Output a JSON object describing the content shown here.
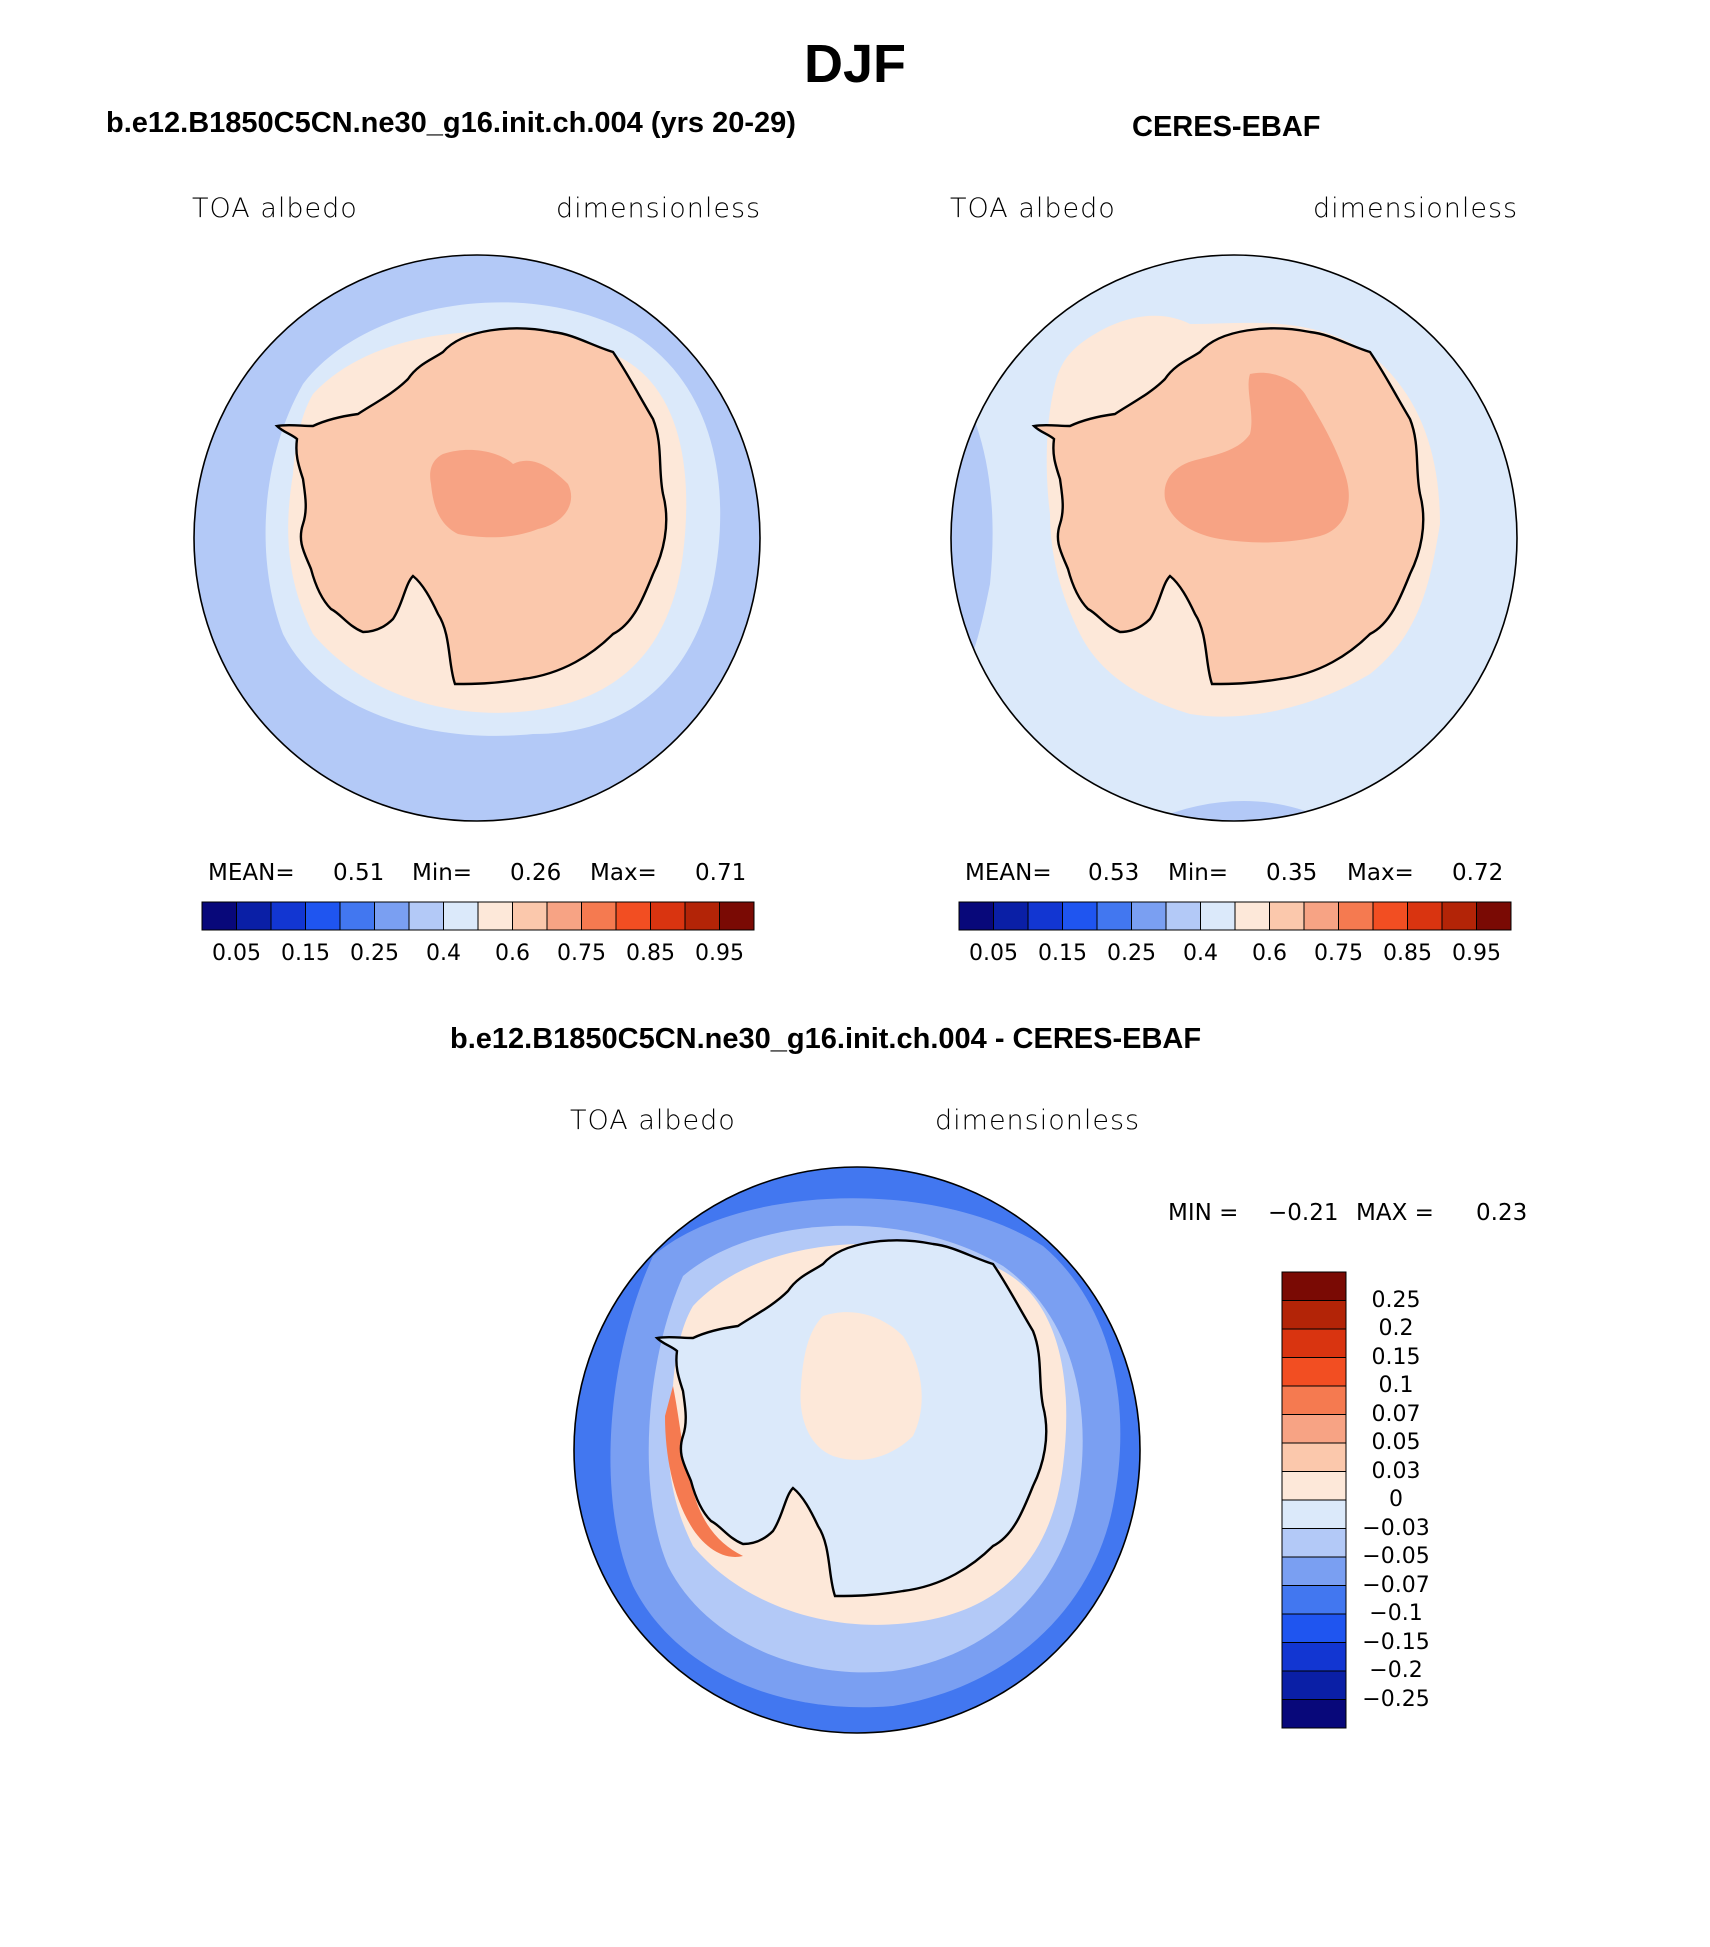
{
  "page_title": "DJF",
  "panels": [
    {
      "title": "b.e12.B1850C5CN.ne30_g16.init.ch.004 (yrs 20-29)",
      "variable": "TOA albedo",
      "units": "dimensionless",
      "stats": {
        "mean_label": "MEAN=",
        "mean": "0.51",
        "min_label": "Min=",
        "min": "0.26",
        "max_label": "Max=",
        "max": "0.71"
      }
    },
    {
      "title": "CERES-EBAF",
      "variable": "TOA albedo",
      "units": "dimensionless",
      "stats": {
        "mean_label": "MEAN=",
        "mean": "0.53",
        "min_label": "Min=",
        "min": "0.35",
        "max_label": "Max=",
        "max": "0.72"
      }
    },
    {
      "title": "b.e12.B1850C5CN.ne30_g16.init.ch.004 - CERES-EBAF",
      "variable": "TOA albedo",
      "units": "dimensionless",
      "stats": {
        "min_label": "MIN =",
        "min": "−0.21",
        "max_label": "MAX =",
        "max": "0.23"
      }
    }
  ],
  "colorbar_abs": {
    "colors": [
      "#08087a",
      "#0a1fa6",
      "#1236d2",
      "#1f55f0",
      "#4277f0",
      "#7a9ff2",
      "#b3c9f7",
      "#dbe9fa",
      "#fde8d9",
      "#fbc8ac",
      "#f7a384",
      "#f57a50",
      "#f24e22",
      "#d93410",
      "#b32407",
      "#7a0a04"
    ],
    "ticks": [
      "0.05",
      "0.15",
      "0.25",
      "0.4",
      "0.6",
      "0.75",
      "0.85",
      "0.95"
    ]
  },
  "colorbar_diff": {
    "colors": [
      "#08087a",
      "#0a1fa6",
      "#1236d2",
      "#1f55f0",
      "#4277f0",
      "#7a9ff2",
      "#b3c9f7",
      "#dbe9fa",
      "#fde8d9",
      "#fbc8ac",
      "#f7a384",
      "#f57a50",
      "#f24e22",
      "#d93410",
      "#b32407",
      "#7a0a04"
    ],
    "ticks": [
      "0.25",
      "0.2",
      "0.15",
      "0.1",
      "0.07",
      "0.05",
      "0.03",
      "0",
      "−0.03",
      "−0.05",
      "−0.07",
      "−0.1",
      "−0.15",
      "−0.2",
      "−0.25"
    ]
  },
  "map_colors": {
    "ocean_outer": "#b3c9f7",
    "ocean_mid": "#dbe9fa",
    "ice_edge": "#fde8d9",
    "continent": "#fbc8ac",
    "continent_high": "#f7a384",
    "coast": "#000000",
    "diff_outer": "#4277f0",
    "diff_mid": "#7a9ff2",
    "diff_near": "#b3c9f7",
    "diff_land": "#dbe9fa",
    "diff_pos": "#f24e22"
  }
}
